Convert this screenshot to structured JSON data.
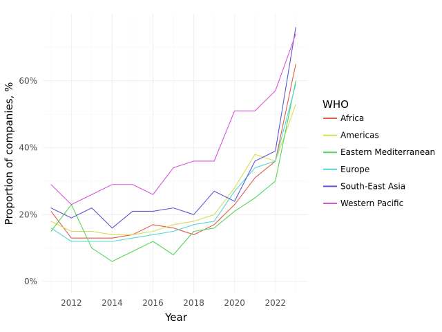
{
  "chart_data": {
    "type": "line",
    "title": "",
    "xlabel": "Year",
    "ylabel": "Proportion of companies, %",
    "legend_title": "WHO",
    "legend_position": "right",
    "grid": true,
    "xlim": [
      2010.6,
      2023.6
    ],
    "ylim": [
      -3.5,
      80
    ],
    "x_ticks": [
      2012,
      2014,
      2016,
      2018,
      2020,
      2022
    ],
    "x_tick_labels": [
      "2012",
      "2014",
      "2016",
      "2018",
      "2020",
      "2022"
    ],
    "y_ticks": [
      0,
      20,
      40,
      60
    ],
    "y_tick_labels": [
      "0%",
      "20%",
      "40%",
      "60%"
    ],
    "x": [
      2011,
      2012,
      2013,
      2014,
      2015,
      2016,
      2017,
      2018,
      2019,
      2020,
      2021,
      2022,
      2023
    ],
    "series": [
      {
        "name": "Africa",
        "color": "#e05a4a",
        "values": [
          21,
          13,
          13,
          13,
          14,
          17,
          16,
          14,
          17,
          23,
          31,
          36,
          65
        ]
      },
      {
        "name": "Americas",
        "color": "#d7dc55",
        "values": [
          18,
          15,
          15,
          14,
          14,
          15,
          17,
          18,
          20,
          28,
          38,
          36,
          53
        ]
      },
      {
        "name": "Eastern Mediterranean",
        "color": "#55d655",
        "values": [
          15,
          23,
          10,
          6,
          9,
          12,
          8,
          15,
          16,
          21,
          25,
          30,
          60
        ]
      },
      {
        "name": "Europe",
        "color": "#55d6d6",
        "values": [
          16,
          12,
          12,
          12,
          13,
          14,
          15,
          17,
          18,
          27,
          34,
          36,
          59
        ]
      },
      {
        "name": "South-East Asia",
        "color": "#5a55d6",
        "values": [
          22,
          19,
          22,
          16,
          21,
          21,
          22,
          20,
          27,
          24,
          36,
          39,
          76
        ]
      },
      {
        "name": "Western Pacific",
        "color": "#d655d6",
        "values": [
          29,
          23,
          26,
          29,
          29,
          26,
          34,
          36,
          36,
          51,
          51,
          57,
          74
        ]
      }
    ]
  }
}
